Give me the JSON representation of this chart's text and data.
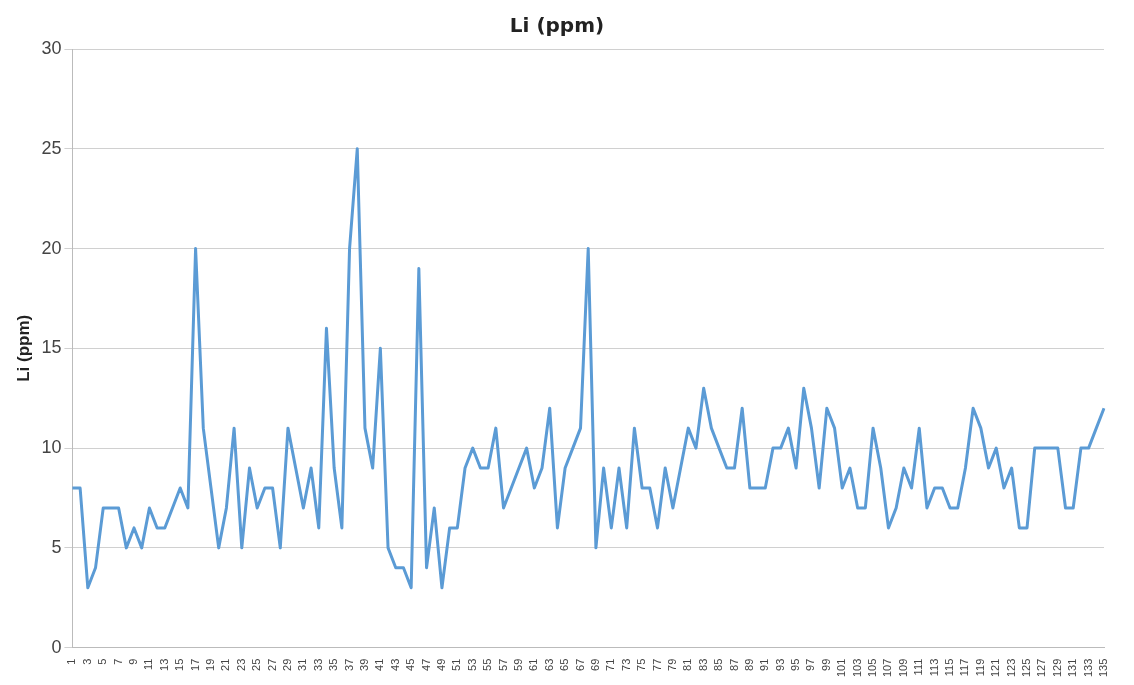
{
  "chart_data": {
    "type": "line",
    "title": "Li (ppm)",
    "ylabel": "Li (ppm)",
    "categories": [
      "1",
      null,
      "3",
      null,
      "5",
      null,
      "7",
      null,
      "9",
      null,
      "11",
      null,
      "13",
      null,
      "15",
      null,
      "17",
      null,
      "19",
      null,
      "21",
      null,
      "23",
      null,
      "25",
      null,
      "27",
      null,
      "29",
      null,
      "31",
      null,
      "33",
      null,
      "35",
      null,
      "37",
      null,
      "39",
      null,
      "41",
      null,
      "43",
      null,
      "45",
      null,
      "47",
      null,
      "49",
      null,
      "51",
      null,
      "53",
      null,
      "55",
      null,
      "57",
      null,
      "59",
      null,
      "61",
      null,
      "63",
      null,
      "65",
      null,
      "67",
      null,
      "69",
      null,
      "71",
      null,
      "73",
      null,
      "75",
      null,
      "77",
      null,
      "79",
      null,
      "81",
      null,
      "83",
      null,
      "85",
      null,
      "87",
      null,
      "89",
      null,
      "91",
      null,
      "93",
      null,
      "95",
      null,
      "97",
      null,
      "99",
      null,
      "101",
      null,
      "103",
      null,
      "105",
      null,
      "107",
      null,
      "109",
      null,
      "111",
      null,
      "113",
      null,
      "115",
      null,
      "117",
      null,
      "119",
      null,
      "121",
      null,
      "123",
      null,
      "125",
      null,
      "127",
      null,
      "129",
      null,
      "131",
      null,
      "133",
      null,
      "135"
    ],
    "series": [
      {
        "color": "#5b9bd5",
        "values": [
          8,
          8,
          3,
          4,
          7,
          7,
          7,
          5,
          6,
          5,
          7,
          6,
          6,
          7,
          8,
          7,
          20,
          11,
          8,
          5,
          7,
          11,
          5,
          9,
          7,
          8,
          8,
          5,
          11,
          9,
          7,
          9,
          6,
          16,
          9,
          6,
          20,
          25,
          11,
          9,
          15,
          5,
          4,
          4,
          3,
          19,
          4,
          7,
          3,
          6,
          6,
          9,
          10,
          9,
          9,
          11,
          7,
          8,
          9,
          10,
          8,
          9,
          12,
          6,
          9,
          10,
          11,
          20,
          5,
          9,
          6,
          9,
          6,
          11,
          8,
          8,
          6,
          9,
          7,
          9,
          11,
          10,
          13,
          11,
          10,
          9,
          9,
          12,
          8,
          8,
          8,
          10,
          10,
          11,
          9,
          13,
          11,
          8,
          12,
          11,
          8,
          9,
          7,
          7,
          11,
          9,
          6,
          7,
          9,
          8,
          11,
          7,
          8,
          8,
          7,
          7,
          9,
          12,
          11,
          9,
          10,
          8,
          9,
          6,
          6,
          10,
          10,
          10,
          10,
          7,
          7,
          10,
          10,
          11,
          12
        ]
      }
    ],
    "ylim": [
      0,
      30
    ],
    "yticks": [
      0,
      5,
      10,
      15,
      20,
      25,
      30
    ],
    "grid": "y",
    "legend": false,
    "marker": "none",
    "line_style": "solid"
  }
}
